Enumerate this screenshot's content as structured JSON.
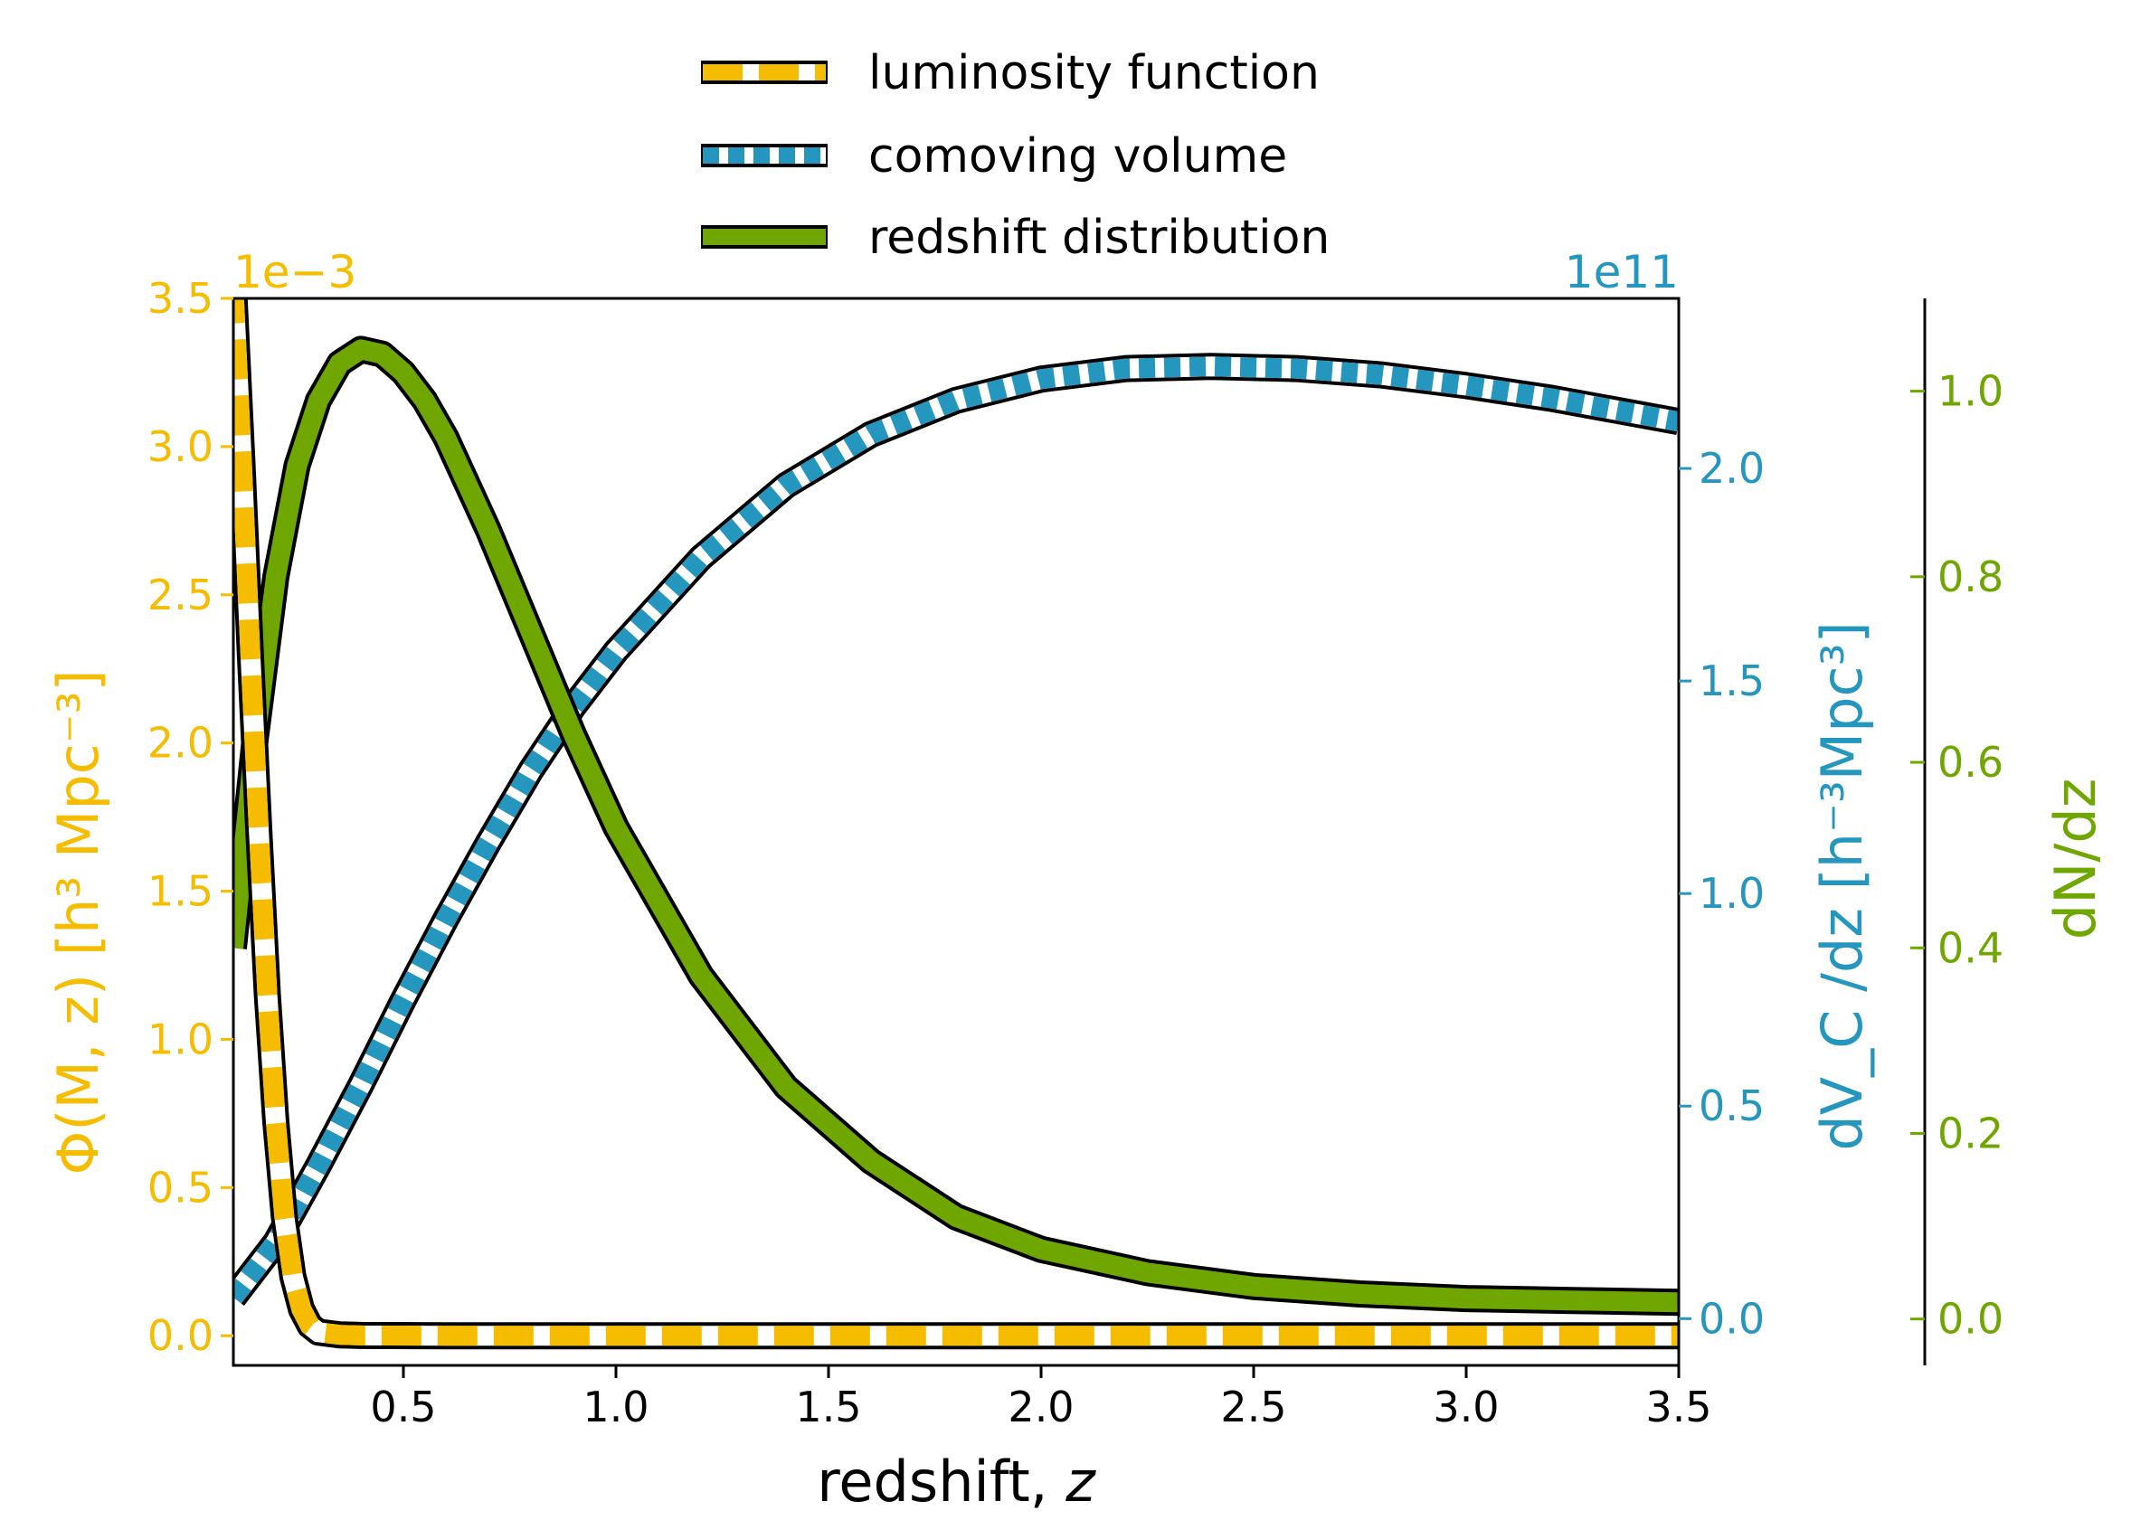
{
  "chart_data": {
    "type": "line",
    "xlabel": "redshift, ",
    "xlabel_italic": "z",
    "xlim": [
      0.1,
      3.5
    ],
    "x_ticks": [
      0.5,
      1.0,
      1.5,
      2.0,
      2.5,
      3.0,
      3.5
    ],
    "x_tick_labels": [
      "0.5",
      "1.0",
      "1.5",
      "2.0",
      "2.5",
      "3.0",
      "3.5"
    ],
    "axes": {
      "left": {
        "color": "#f5bc00",
        "label": "Φ(M, z) [h³ Mpc⁻³]",
        "offset_text": "1e−3",
        "ylim": [
          -0.1,
          3.5
        ],
        "ticks": [
          0.0,
          0.5,
          1.0,
          1.5,
          2.0,
          2.5,
          3.0,
          3.5
        ],
        "tick_labels": [
          "0.0",
          "0.5",
          "1.0",
          "1.5",
          "2.0",
          "2.5",
          "3.0",
          "3.5"
        ]
      },
      "right1": {
        "color": "#2596be",
        "label": "dV_C /dz [h⁻³Mpc³]",
        "offset_text": "1e11",
        "ylim": [
          -0.11,
          2.4
        ],
        "ticks": [
          0.0,
          0.5,
          1.0,
          1.5,
          2.0
        ],
        "tick_labels": [
          "0.0",
          "0.5",
          "1.0",
          "1.5",
          "2.0"
        ]
      },
      "right2": {
        "color": "#6fa700",
        "label": "dN/dz",
        "ylim": [
          -0.05,
          1.1
        ],
        "ticks": [
          0.0,
          0.2,
          0.4,
          0.6,
          0.8,
          1.0
        ],
        "tick_labels": [
          "0.0",
          "0.2",
          "0.4",
          "0.6",
          "0.8",
          "1.0"
        ]
      }
    },
    "legend": {
      "placement": "top-center",
      "entries": [
        "luminosity function",
        "comoving volume",
        "redshift distribution"
      ]
    },
    "series": [
      {
        "name": "luminosity function",
        "axis": "left",
        "style": "dashed",
        "color": "#f5bc00",
        "x": [
          0.1,
          0.12,
          0.14,
          0.16,
          0.18,
          0.2,
          0.22,
          0.24,
          0.26,
          0.28,
          0.3,
          0.35,
          0.4,
          0.6,
          1.0,
          1.5,
          2.0,
          2.5,
          3.0,
          3.5
        ],
        "values": [
          3.55,
          2.95,
          2.3,
          1.7,
          1.15,
          0.72,
          0.4,
          0.2,
          0.09,
          0.035,
          0.012,
          0.003,
          0.001,
          0.0,
          0.0,
          0.0,
          0.0,
          0.0,
          0.0,
          0.0
        ]
      },
      {
        "name": "comoving volume",
        "axis": "right1",
        "style": "dotted",
        "color": "#2596be",
        "x": [
          0.1,
          0.2,
          0.3,
          0.4,
          0.5,
          0.6,
          0.7,
          0.8,
          0.9,
          1.0,
          1.2,
          1.4,
          1.6,
          1.8,
          2.0,
          2.2,
          2.4,
          2.6,
          2.8,
          3.0,
          3.2,
          3.5
        ],
        "values": [
          0.05,
          0.18,
          0.36,
          0.55,
          0.75,
          0.94,
          1.12,
          1.29,
          1.44,
          1.57,
          1.79,
          1.96,
          2.08,
          2.16,
          2.21,
          2.235,
          2.24,
          2.235,
          2.22,
          2.195,
          2.165,
          2.11
        ]
      },
      {
        "name": "redshift distribution",
        "axis": "right2",
        "style": "solid",
        "color": "#6fa700",
        "x": [
          0.1,
          0.15,
          0.2,
          0.25,
          0.3,
          0.35,
          0.4,
          0.45,
          0.5,
          0.55,
          0.6,
          0.7,
          0.8,
          0.9,
          1.0,
          1.2,
          1.4,
          1.6,
          1.8,
          2.0,
          2.25,
          2.5,
          2.75,
          3.0,
          3.25,
          3.5
        ],
        "values": [
          0.4,
          0.62,
          0.8,
          0.92,
          0.99,
          1.03,
          1.045,
          1.04,
          1.02,
          0.99,
          0.95,
          0.85,
          0.74,
          0.63,
          0.53,
          0.37,
          0.25,
          0.17,
          0.11,
          0.075,
          0.05,
          0.035,
          0.027,
          0.022,
          0.02,
          0.018
        ]
      }
    ]
  }
}
